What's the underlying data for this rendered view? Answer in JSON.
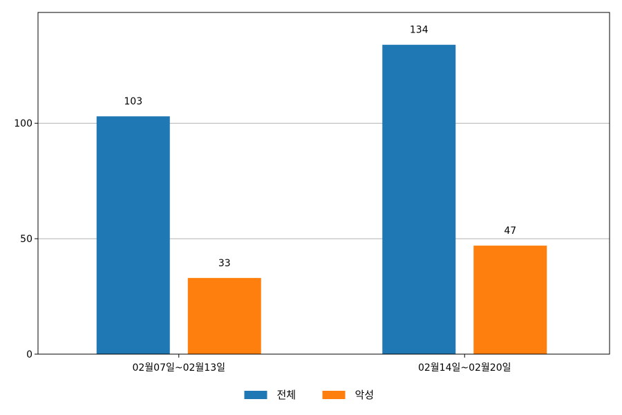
{
  "chart_data": {
    "type": "bar",
    "title": "",
    "xlabel": "",
    "ylabel": "",
    "categories": [
      "02월07일~02월13일",
      "02월14일~02월20일"
    ],
    "series": [
      {
        "name": "전체",
        "values": [
          103,
          134
        ],
        "color": "#1f77b4"
      },
      {
        "name": "악성",
        "values": [
          33,
          47
        ],
        "color": "#ff7f0e"
      }
    ],
    "ylim": [
      0,
      148
    ],
    "yticks": [
      0,
      50,
      100
    ],
    "grid": "horizontal",
    "legend": "bottom-center"
  }
}
